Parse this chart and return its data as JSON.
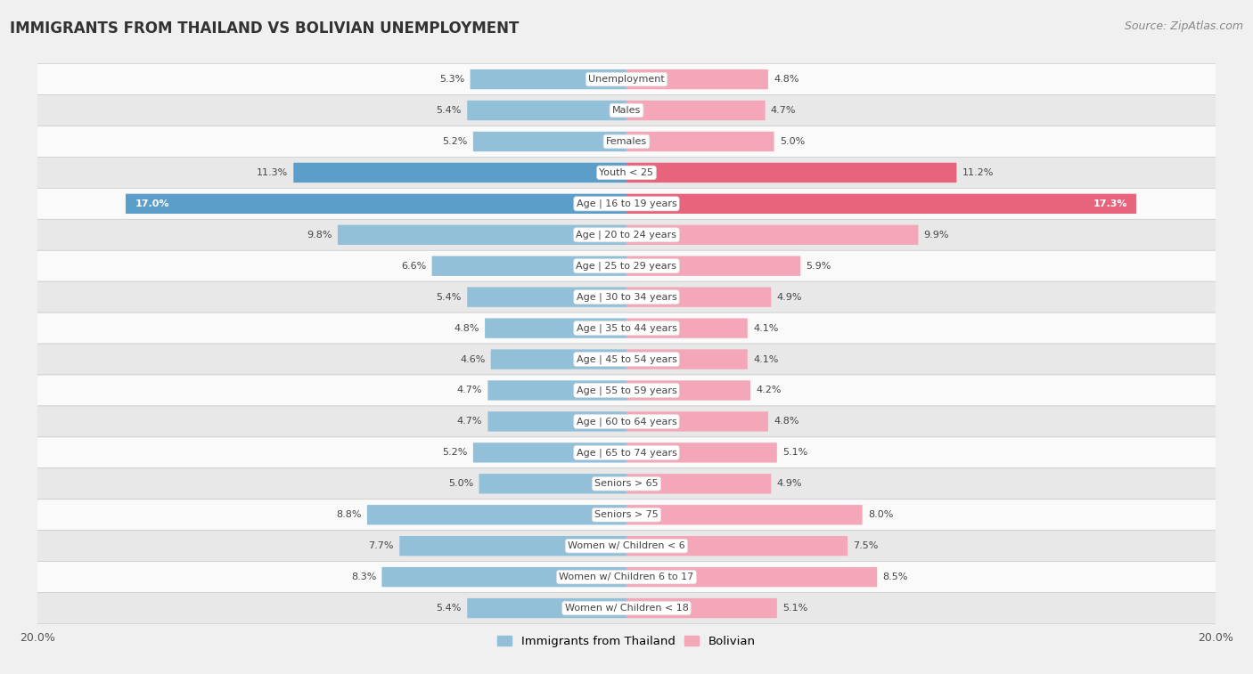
{
  "title": "IMMIGRANTS FROM THAILAND VS BOLIVIAN UNEMPLOYMENT",
  "source": "Source: ZipAtlas.com",
  "categories": [
    "Unemployment",
    "Males",
    "Females",
    "Youth < 25",
    "Age | 16 to 19 years",
    "Age | 20 to 24 years",
    "Age | 25 to 29 years",
    "Age | 30 to 34 years",
    "Age | 35 to 44 years",
    "Age | 45 to 54 years",
    "Age | 55 to 59 years",
    "Age | 60 to 64 years",
    "Age | 65 to 74 years",
    "Seniors > 65",
    "Seniors > 75",
    "Women w/ Children < 6",
    "Women w/ Children 6 to 17",
    "Women w/ Children < 18"
  ],
  "thailand_values": [
    5.3,
    5.4,
    5.2,
    11.3,
    17.0,
    9.8,
    6.6,
    5.4,
    4.8,
    4.6,
    4.7,
    4.7,
    5.2,
    5.0,
    8.8,
    7.7,
    8.3,
    5.4
  ],
  "bolivian_values": [
    4.8,
    4.7,
    5.0,
    11.2,
    17.3,
    9.9,
    5.9,
    4.9,
    4.1,
    4.1,
    4.2,
    4.8,
    5.1,
    4.9,
    8.0,
    7.5,
    8.5,
    5.1
  ],
  "thailand_color": "#92c0d8",
  "bolivian_color": "#f4a7b9",
  "thailand_highlight_color": "#5b9ec9",
  "bolivian_highlight_color": "#e8637c",
  "background_color": "#f0f0f0",
  "row_color_light": "#fafafa",
  "row_color_dark": "#e8e8e8",
  "xlim": 20.0,
  "bar_height": 0.62,
  "legend_label_thailand": "Immigrants from Thailand",
  "legend_label_bolivian": "Bolivian",
  "title_fontsize": 12,
  "source_fontsize": 9,
  "label_fontsize": 8,
  "value_fontsize": 8
}
